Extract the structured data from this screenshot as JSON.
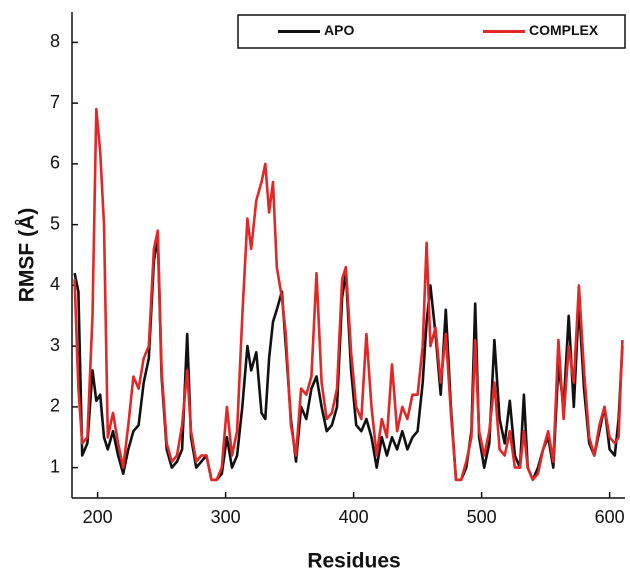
{
  "chart_data": {
    "type": "line",
    "x_label": "Residues",
    "y_label": "RMSF (Å)",
    "x": [
      182,
      185,
      188,
      192,
      196,
      199,
      202,
      205,
      208,
      212,
      216,
      220,
      224,
      228,
      232,
      236,
      240,
      244,
      247,
      250,
      254,
      258,
      262,
      266,
      270,
      273,
      277,
      281,
      285,
      289,
      293,
      297,
      301,
      305,
      309,
      313,
      317,
      320,
      324,
      328,
      331,
      334,
      337,
      340,
      344,
      347,
      351,
      355,
      359,
      363,
      367,
      371,
      375,
      379,
      383,
      387,
      391,
      394,
      398,
      402,
      406,
      410,
      414,
      418,
      422,
      426,
      430,
      434,
      438,
      442,
      446,
      450,
      454,
      457,
      460,
      464,
      468,
      472,
      476,
      480,
      484,
      488,
      492,
      495,
      498,
      502,
      506,
      510,
      514,
      518,
      522,
      526,
      530,
      533,
      536,
      540,
      544,
      548,
      552,
      556,
      560,
      564,
      568,
      572,
      576,
      580,
      584,
      588,
      592,
      596,
      600,
      604,
      607,
      610
    ],
    "series": [
      {
        "name": "APO",
        "color": "#111111",
        "values": [
          4.2,
          3.9,
          1.2,
          1.4,
          2.6,
          2.1,
          2.2,
          1.5,
          1.3,
          1.6,
          1.2,
          0.9,
          1.3,
          1.6,
          1.7,
          2.4,
          2.8,
          4.4,
          4.8,
          2.5,
          1.3,
          1.0,
          1.1,
          1.3,
          3.2,
          1.5,
          1.0,
          1.1,
          1.2,
          0.8,
          0.8,
          0.9,
          1.5,
          1.0,
          1.2,
          2.0,
          3.0,
          2.6,
          2.9,
          1.9,
          1.8,
          2.8,
          3.4,
          3.6,
          3.9,
          3.0,
          1.8,
          1.1,
          2.0,
          1.8,
          2.3,
          2.5,
          2.0,
          1.6,
          1.7,
          2.0,
          3.8,
          4.2,
          2.6,
          1.7,
          1.6,
          1.8,
          1.5,
          1.0,
          1.5,
          1.2,
          1.5,
          1.3,
          1.6,
          1.3,
          1.5,
          1.6,
          2.4,
          3.4,
          4.0,
          3.2,
          2.2,
          3.6,
          2.0,
          0.8,
          0.8,
          1.0,
          1.6,
          3.7,
          1.5,
          1.0,
          1.4,
          3.1,
          1.8,
          1.4,
          2.1,
          1.2,
          1.0,
          2.2,
          1.0,
          0.8,
          1.0,
          1.3,
          1.5,
          1.0,
          2.7,
          2.0,
          3.5,
          2.0,
          3.7,
          2.3,
          1.4,
          1.2,
          1.6,
          2.0,
          1.3,
          1.2,
          1.8,
          3.0
        ]
      },
      {
        "name": "COMPLEX",
        "color": "#e32626",
        "values": [
          4.1,
          2.3,
          1.4,
          1.5,
          3.5,
          6.9,
          6.2,
          5.0,
          1.5,
          1.9,
          1.4,
          1.0,
          1.7,
          2.5,
          2.3,
          2.8,
          3.0,
          4.6,
          4.9,
          2.6,
          1.4,
          1.1,
          1.2,
          1.7,
          2.6,
          1.6,
          1.1,
          1.2,
          1.2,
          0.8,
          0.8,
          1.0,
          2.0,
          1.2,
          1.6,
          3.5,
          5.1,
          4.6,
          5.4,
          5.7,
          6.0,
          5.2,
          5.7,
          4.3,
          3.8,
          3.2,
          1.7,
          1.2,
          2.3,
          2.2,
          2.5,
          4.2,
          2.4,
          1.8,
          1.9,
          2.3,
          4.1,
          4.3,
          2.9,
          2.0,
          1.8,
          3.2,
          2.0,
          1.2,
          1.8,
          1.5,
          2.7,
          1.6,
          2.0,
          1.8,
          2.2,
          2.2,
          3.0,
          4.7,
          3.0,
          3.3,
          2.4,
          3.2,
          1.9,
          0.8,
          0.8,
          1.1,
          1.5,
          3.1,
          1.6,
          1.2,
          1.6,
          2.4,
          1.3,
          1.2,
          1.6,
          1.0,
          1.0,
          1.6,
          1.0,
          0.8,
          0.9,
          1.3,
          1.6,
          1.1,
          3.1,
          1.8,
          3.0,
          2.4,
          4.0,
          2.6,
          1.5,
          1.2,
          1.7,
          2.0,
          1.5,
          1.4,
          1.5,
          3.1
        ]
      }
    ],
    "xlim": [
      180,
      612
    ],
    "ylim": [
      0.5,
      8.5
    ],
    "xticks": [
      200,
      300,
      400,
      500,
      600
    ],
    "yticks": [
      1,
      2,
      3,
      4,
      5,
      6,
      7,
      8
    ],
    "legend": "top"
  }
}
